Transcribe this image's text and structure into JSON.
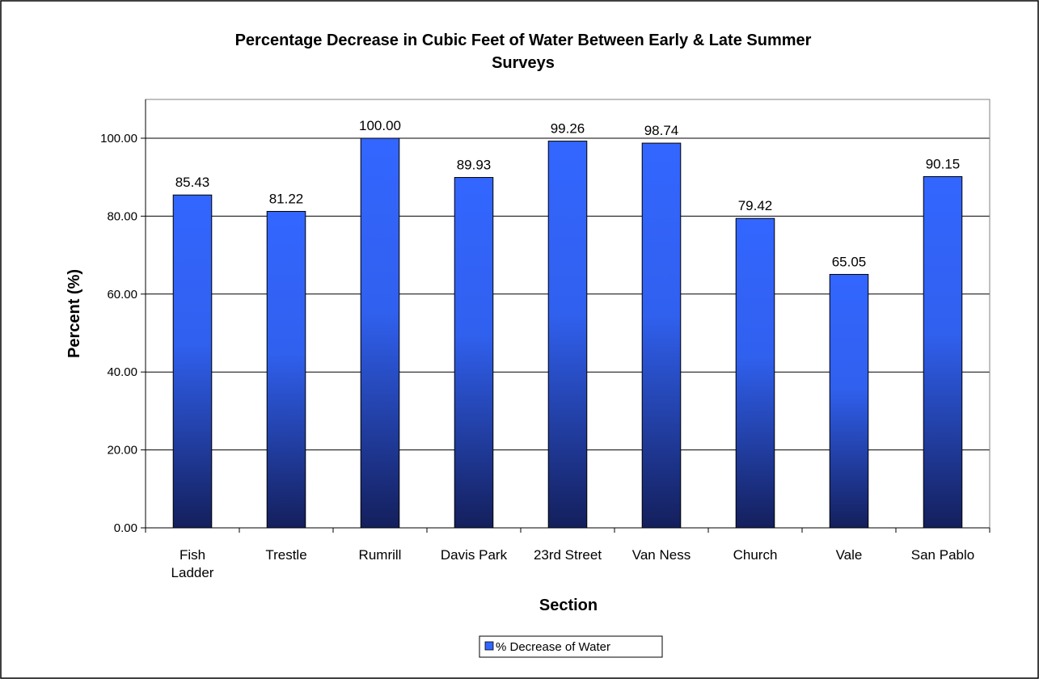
{
  "chart_data": {
    "type": "bar",
    "title_lines": [
      "Percentage Decrease in Cubic Feet of Water Between Early & Late Summer",
      "Surveys"
    ],
    "xlabel": "Section",
    "ylabel": "Percent (%)",
    "ylim": [
      0,
      100
    ],
    "ytick_step": 20,
    "ytick_labels": [
      "0.00",
      "20.00",
      "40.00",
      "60.00",
      "80.00",
      "100.00"
    ],
    "grid": true,
    "legend_position": "bottom",
    "categories": [
      [
        "Fish",
        "Ladder"
      ],
      [
        "Trestle"
      ],
      [
        "Rumrill"
      ],
      [
        "Davis Park"
      ],
      [
        "23rd Street"
      ],
      [
        "Van Ness"
      ],
      [
        "Church"
      ],
      [
        "Vale"
      ],
      [
        "San Pablo"
      ]
    ],
    "series": [
      {
        "name": "% Decrease of Water",
        "values": [
          85.43,
          81.22,
          100.0,
          89.93,
          99.26,
          98.74,
          79.42,
          65.05,
          90.15
        ],
        "labels": [
          "85.43",
          "81.22",
          "100.00",
          "89.93",
          "99.26",
          "98.74",
          "79.42",
          "65.05",
          "90.15"
        ],
        "color_top": "#3366ff",
        "color_bottom": "#141f5c"
      }
    ]
  }
}
